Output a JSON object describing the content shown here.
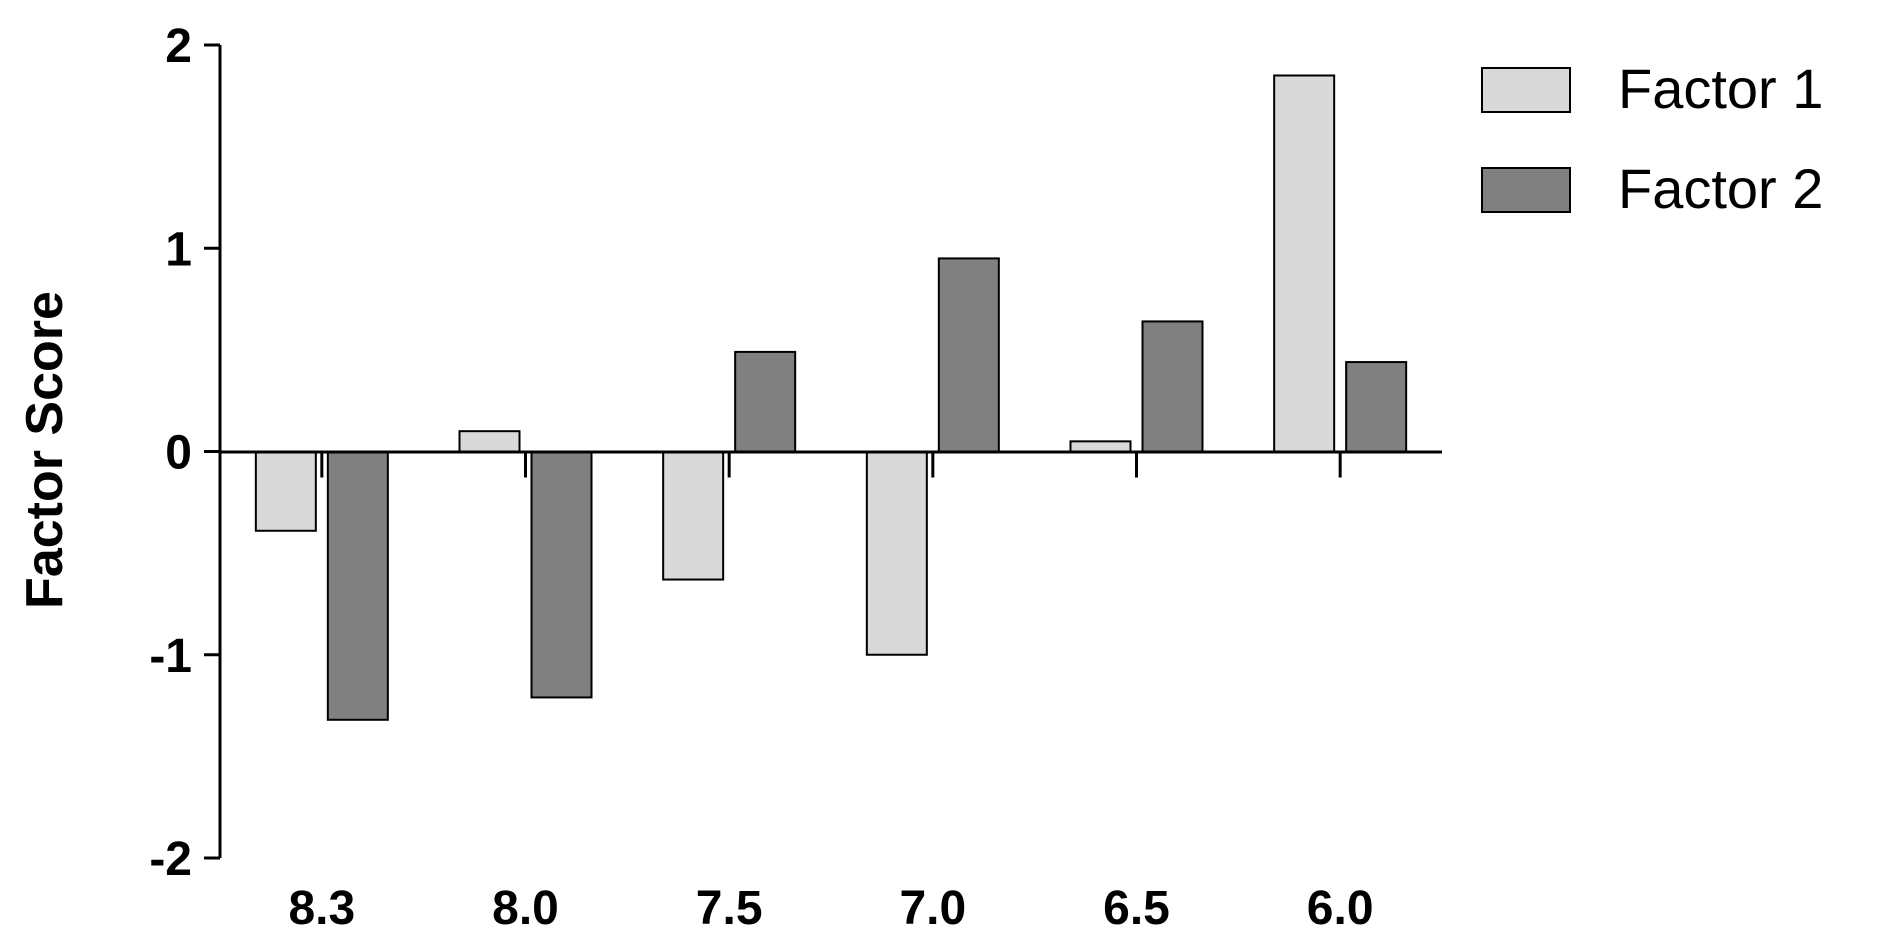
{
  "chart_data": {
    "type": "bar",
    "title": "",
    "xlabel": "",
    "ylabel": "Factor Score",
    "categories": [
      "8.3",
      "8.0",
      "7.5",
      "7.0",
      "6.5",
      "6.0"
    ],
    "series": [
      {
        "name": "Factor 1",
        "values": [
          -0.39,
          0.1,
          -0.63,
          -1.0,
          0.05,
          1.85
        ],
        "color": "#d9d9d9"
      },
      {
        "name": "Factor 2",
        "values": [
          -1.32,
          -1.21,
          0.49,
          0.95,
          0.64,
          0.44
        ],
        "color": "#808080"
      }
    ],
    "ylim": [
      -2,
      2
    ],
    "yticks": [
      "-2",
      "-1",
      "0",
      "1",
      "2"
    ],
    "grid": false,
    "legend_position": "top-right"
  }
}
